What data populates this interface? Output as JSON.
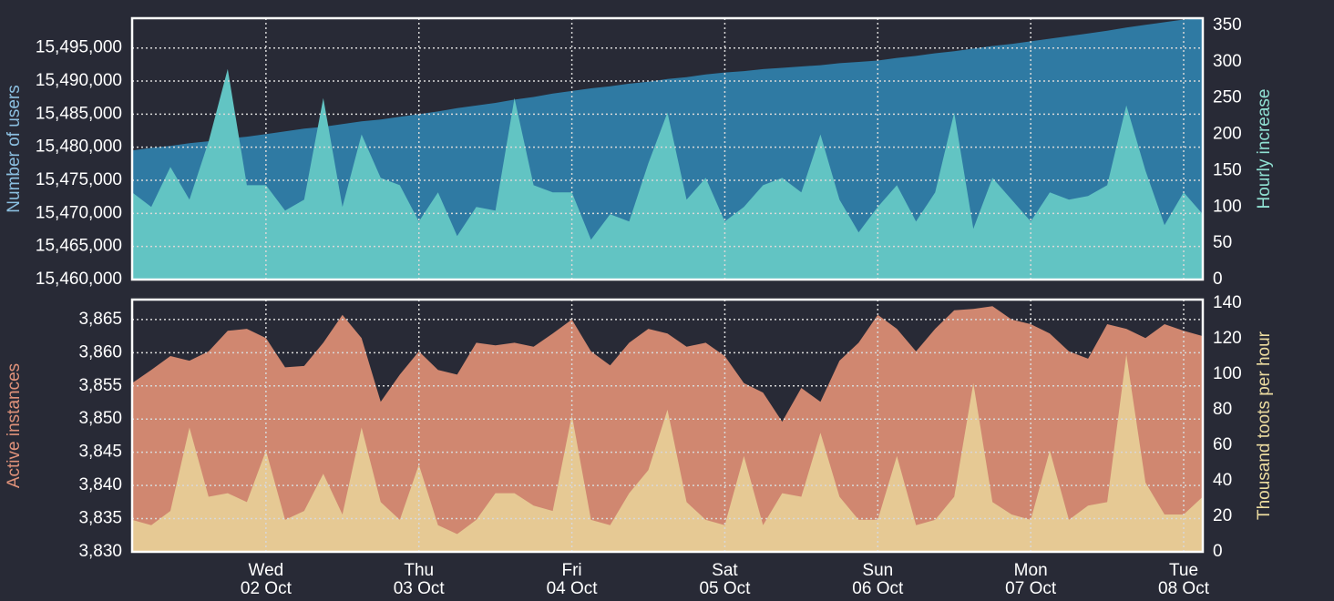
{
  "chart_data": [
    {
      "type": "area",
      "ylabel": "Number of users",
      "y2label": "Hourly increase",
      "ylim": [
        15460000,
        15499500
      ],
      "yticks": [
        {
          "value": 15460000,
          "label": "15,460,000"
        },
        {
          "value": 15465000,
          "label": "15,465,000"
        },
        {
          "value": 15470000,
          "label": "15,470,000"
        },
        {
          "value": 15475000,
          "label": "15,475,000"
        },
        {
          "value": 15480000,
          "label": "15,480,000"
        },
        {
          "value": 15485000,
          "label": "15,485,000"
        },
        {
          "value": 15490000,
          "label": "15,490,000"
        },
        {
          "value": 15495000,
          "label": "15,495,000"
        }
      ],
      "y2lim": [
        0,
        360
      ],
      "y2ticks": [
        0,
        50,
        100,
        150,
        200,
        250,
        300,
        350
      ],
      "grid": true,
      "series": [
        {
          "color": "#2f7aa3",
          "label_color": "#8bbfe0",
          "values": [
            15479500,
            15479900,
            15480200,
            15480600,
            15480900,
            15481300,
            15481600,
            15482000,
            15482400,
            15482800,
            15483100,
            15483500,
            15483900,
            15484200,
            15484600,
            15485000,
            15485400,
            15485900,
            15486300,
            15486700,
            15487200,
            15487600,
            15488100,
            15488500,
            15488900,
            15489200,
            15489600,
            15489900,
            15490300,
            15490600,
            15491000,
            15491300,
            15491500,
            15491800,
            15492000,
            15492200,
            15492400,
            15492700,
            15492900,
            15493100,
            15493500,
            15493800,
            15494200,
            15494500,
            15494900,
            15495300,
            15495600,
            15496000,
            15496400,
            15496800,
            15497200,
            15497600,
            15498100,
            15498500,
            15498900,
            15499300,
            15499500
          ]
        },
        {
          "axis": "y2",
          "color": "#62c4c3",
          "label_color": "#8fe0d2",
          "values": [
            120,
            100,
            155,
            110,
            190,
            290,
            130,
            130,
            95,
            110,
            250,
            100,
            200,
            140,
            130,
            80,
            120,
            60,
            100,
            95,
            250,
            130,
            120,
            120,
            55,
            90,
            80,
            160,
            230,
            110,
            140,
            80,
            100,
            130,
            140,
            120,
            200,
            110,
            65,
            100,
            130,
            80,
            120,
            230,
            70,
            140,
            110,
            80,
            120,
            110,
            115,
            130,
            240,
            150,
            75,
            120,
            90
          ]
        }
      ]
    },
    {
      "type": "area",
      "ylabel": "Active instances",
      "y2label": "Thousand toots per hour",
      "ylim": [
        3830,
        3868
      ],
      "yticks": [
        {
          "value": 3830,
          "label": "3,830"
        },
        {
          "value": 3835,
          "label": "3,835"
        },
        {
          "value": 3840,
          "label": "3,840"
        },
        {
          "value": 3845,
          "label": "3,845"
        },
        {
          "value": 3850,
          "label": "3,850"
        },
        {
          "value": 3855,
          "label": "3,855"
        },
        {
          "value": 3860,
          "label": "3,860"
        },
        {
          "value": 3865,
          "label": "3,865"
        }
      ],
      "y2lim": [
        0,
        142
      ],
      "y2ticks": [
        0,
        20,
        40,
        60,
        80,
        100,
        120,
        140
      ],
      "grid": true,
      "categories": [
        null,
        null,
        null,
        null,
        null,
        null,
        null,
        {
          "weekday": "Wed",
          "date": "02 Oct"
        },
        null,
        null,
        null,
        null,
        null,
        null,
        null,
        {
          "weekday": "Thu",
          "date": "03 Oct"
        },
        null,
        null,
        null,
        null,
        null,
        null,
        null,
        {
          "weekday": "Fri",
          "date": "04 Oct"
        },
        null,
        null,
        null,
        null,
        null,
        null,
        null,
        {
          "weekday": "Sat",
          "date": "05 Oct"
        },
        null,
        null,
        null,
        null,
        null,
        null,
        null,
        {
          "weekday": "Sun",
          "date": "06 Oct"
        },
        null,
        null,
        null,
        null,
        null,
        null,
        null,
        {
          "weekday": "Mon",
          "date": "07 Oct"
        },
        null,
        null,
        null,
        null,
        null,
        null,
        null,
        {
          "weekday": "Tue",
          "date": "08 Oct"
        },
        null
      ],
      "series": [
        {
          "color": "#d08770",
          "label_color": "#e0927a",
          "values": [
            3855.4,
            3857.4,
            3859.5,
            3858.8,
            3860.2,
            3863.3,
            3863.6,
            3862.2,
            3857.8,
            3858,
            3861.5,
            3865.7,
            3862.2,
            3852.6,
            3856.7,
            3860.2,
            3857.4,
            3856.7,
            3861.5,
            3861.1,
            3861.5,
            3860.9,
            3862.9,
            3865,
            3860.2,
            3858.1,
            3861.5,
            3863.6,
            3862.9,
            3860.9,
            3861.5,
            3859.5,
            3855.4,
            3854,
            3849.6,
            3854.7,
            3852.6,
            3858.8,
            3861.5,
            3865.7,
            3863.6,
            3860.2,
            3863.6,
            3866.4,
            3866.6,
            3867,
            3865,
            3864.3,
            3862.9,
            3860.2,
            3859.1,
            3864.3,
            3863.6,
            3862.2,
            3864.3,
            3863.3,
            3862.5
          ]
        },
        {
          "axis": "y2",
          "color": "#e6c994",
          "label_color": "#ecdca0",
          "values": [
            18,
            15,
            23,
            70,
            31,
            33,
            28,
            57,
            18,
            23,
            44,
            21,
            70,
            28,
            18,
            49,
            15,
            10,
            18,
            33,
            33,
            26,
            23,
            77,
            18,
            15,
            33,
            46,
            80,
            28,
            18,
            15,
            54,
            15,
            33,
            31,
            67,
            31,
            18,
            18,
            54,
            15,
            18,
            31,
            95,
            28,
            21,
            18,
            57,
            18,
            26,
            28,
            111,
            39,
            21,
            21,
            31
          ]
        }
      ]
    }
  ]
}
